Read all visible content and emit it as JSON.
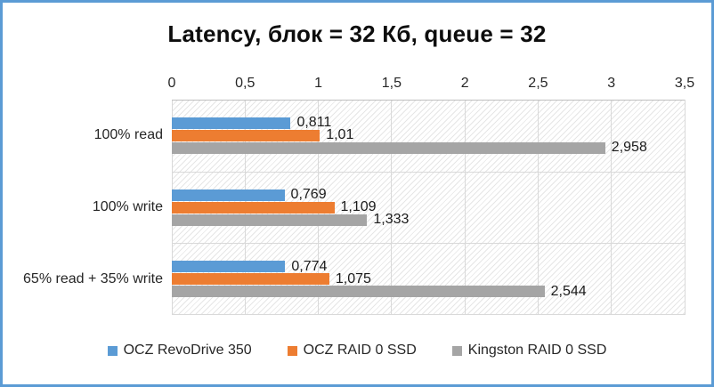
{
  "title": "Latency, блок = 32 Кб, queue = 32",
  "colors": {
    "frame_border": "#5B9BD5",
    "series_blue": "#5B9BD5",
    "series_orange": "#ED7D31",
    "series_gray": "#A5A5A5",
    "gridline": "#D9D9D9",
    "axis_line": "#BFBFBF",
    "text": "#262626"
  },
  "chart_data": {
    "type": "bar",
    "orientation": "horizontal",
    "title": "Latency, блок = 32 Кб, queue = 32",
    "categories": [
      "100% read",
      "100% write",
      "65% read + 35% write"
    ],
    "series": [
      {
        "name": "OCZ RevoDrive 350",
        "color": "#5B9BD5",
        "values": [
          0.811,
          0.769,
          0.774
        ],
        "labels": [
          "0,811",
          "0,769",
          "0,774"
        ]
      },
      {
        "name": "OCZ RAID 0 SSD",
        "color": "#ED7D31",
        "values": [
          1.01,
          1.109,
          1.075
        ],
        "labels": [
          "1,01",
          "1,109",
          "1,075"
        ]
      },
      {
        "name": "Kingston RAID 0 SSD",
        "color": "#A5A5A5",
        "values": [
          2.958,
          1.333,
          2.544
        ],
        "labels": [
          "2,958",
          "1,333",
          "2,544"
        ]
      }
    ],
    "x_axis": {
      "min": 0,
      "max": 3.5,
      "step": 0.5,
      "position": "top",
      "tick_labels": [
        "0",
        "0,5",
        "1",
        "1,5",
        "2",
        "2,5",
        "3",
        "3,5"
      ]
    },
    "grid": true,
    "plot_fill": "diagonal-hatch",
    "legend_position": "bottom",
    "value_label_position": "outside-end"
  }
}
